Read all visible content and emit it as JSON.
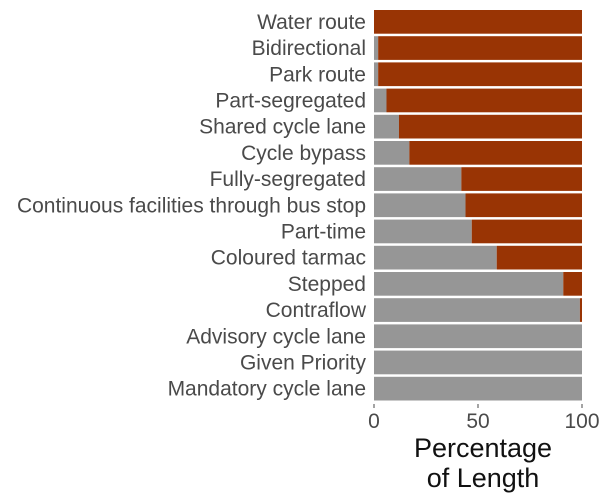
{
  "chart_data": {
    "type": "bar",
    "orientation": "horizontal",
    "stacked": true,
    "categories": [
      "Water route",
      "Bidirectional",
      "Park route",
      "Part-segregated",
      "Shared cycle lane",
      "Cycle bypass",
      "Fully-segregated",
      "Continuous facilities through bus stop",
      "Part-time",
      "Coloured tarmac",
      "Stepped",
      "Contraflow",
      "Advisory cycle lane",
      "Given Priority",
      "Mandatory cycle lane"
    ],
    "series": [
      {
        "color": "#969696",
        "values": [
          0,
          2,
          2,
          6,
          12,
          17,
          42,
          44,
          47,
          59,
          91,
          99,
          100,
          100,
          100
        ]
      },
      {
        "color": "#993404",
        "values": [
          100,
          98,
          98,
          94,
          88,
          83,
          58,
          56,
          53,
          41,
          9,
          1,
          0,
          0,
          0
        ]
      }
    ],
    "xlabel_lines": [
      "Percentage",
      "of Length"
    ],
    "ylabel": "",
    "xlim": [
      0,
      100
    ],
    "xticks": [
      0,
      50,
      100
    ],
    "grid": false,
    "legend": "none"
  }
}
